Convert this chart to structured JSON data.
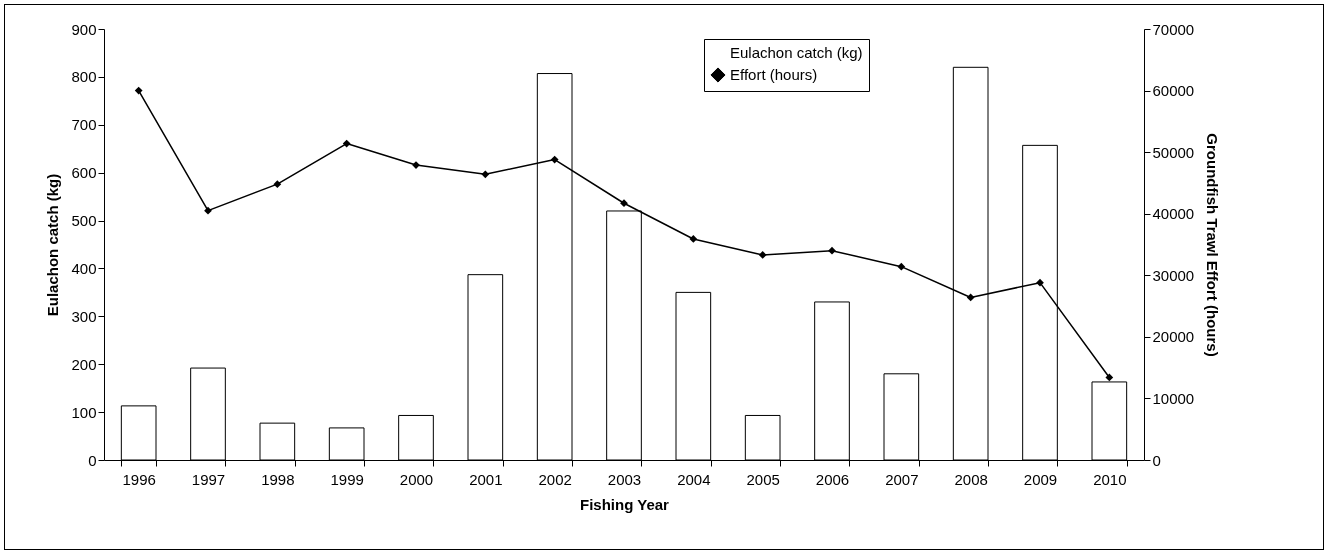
{
  "chart_data": {
    "type": "bar",
    "xlabel": "Fishing Year",
    "ylabel": "Eulachon catch (kg)",
    "y2label": "Groundfish Trawl Effort (hours)",
    "categories": [
      "1996",
      "1997",
      "1998",
      "1999",
      "2000",
      "2001",
      "2002",
      "2003",
      "2004",
      "2005",
      "2006",
      "2007",
      "2008",
      "2009",
      "2010"
    ],
    "series": [
      {
        "name": "Eulachon catch (kg)",
        "color": "#ffffff",
        "values": [
          113,
          192,
          77,
          67,
          93,
          387,
          807,
          520,
          350,
          93,
          330,
          180,
          820,
          657,
          163
        ]
      },
      {
        "name": "Effort (hours)",
        "type": "line",
        "axis": "y2",
        "color": "#000000",
        "marker": "diamond",
        "values": [
          60000,
          40500,
          44800,
          51400,
          47900,
          46400,
          48800,
          41700,
          35900,
          33300,
          34000,
          31400,
          26400,
          28800,
          13400
        ]
      }
    ],
    "ylim": [
      0,
      900
    ],
    "yticks": [
      0,
      100,
      200,
      300,
      400,
      500,
      600,
      700,
      800,
      900
    ],
    "y2lim": [
      0,
      70000
    ],
    "y2ticks": [
      0,
      10000,
      20000,
      30000,
      40000,
      50000,
      60000,
      70000
    ],
    "grid": false,
    "legend": "top right"
  }
}
